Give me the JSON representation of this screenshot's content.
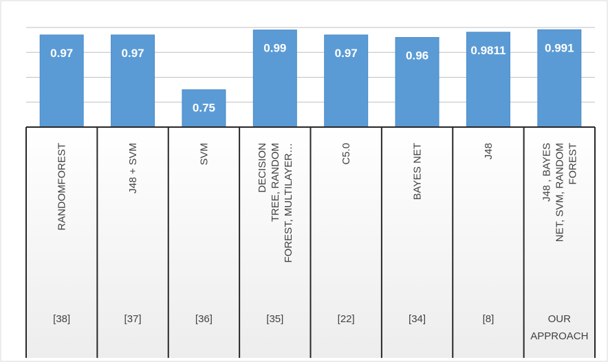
{
  "chart_data": {
    "type": "bar",
    "title": "",
    "xlabel": "",
    "ylabel": "",
    "ylim": [
      0.6,
      1.0
    ],
    "categories": [
      {
        "method": "RANDOMFOREST",
        "ref": "[38]"
      },
      {
        "method": "J48 + SVM",
        "ref": "[37]"
      },
      {
        "method": "SVM",
        "ref": "[36]"
      },
      {
        "method": "DECISION TREE, RANDOM FOREST, MULTILAYER…",
        "ref": "[35]"
      },
      {
        "method": "C5.0",
        "ref": "[22]"
      },
      {
        "method": "BAYES NET",
        "ref": "[34]"
      },
      {
        "method": "J48",
        "ref": "[8]"
      },
      {
        "method": "J48 , BAYES NET, SVM, RANDOM FOREST",
        "ref": "OUR APPROACH"
      }
    ],
    "method_label_lines": [
      [
        "RANDOMFOREST"
      ],
      [
        "J48 + SVM"
      ],
      [
        "SVM"
      ],
      [
        "DECISION",
        "TREE, RANDOM",
        "FOREST, MULTILAYER…"
      ],
      [
        "C5.0"
      ],
      [
        "BAYES NET"
      ],
      [
        "J48"
      ],
      [
        "J48 , BAYES",
        "NET, SVM, RANDOM",
        "FOREST"
      ]
    ],
    "ref_label_lines": [
      [
        "[38]"
      ],
      [
        "[37]"
      ],
      [
        "[36]"
      ],
      [
        "[35]"
      ],
      [
        "[22]"
      ],
      [
        "[34]"
      ],
      [
        "[8]"
      ],
      [
        "OUR",
        "APPROACH"
      ]
    ],
    "values": [
      0.97,
      0.97,
      0.75,
      0.99,
      0.97,
      0.96,
      0.9811,
      0.991
    ],
    "data_labels": [
      "0.97",
      "0.97",
      "0.75",
      "0.99",
      "0.97",
      "0.96",
      "0.9811",
      "0.991"
    ],
    "grid": true,
    "legend": "none",
    "colors": {
      "bar_fill": "#5b9bd5",
      "bar_stroke": "#4a8bc9",
      "data_label": "#ffffff",
      "axis_text": "#404040",
      "category_bg_top": "#ffffff",
      "category_bg_bottom": "#ededed",
      "grid": "#bfbfbf",
      "divider": "#262626",
      "frame": "#d9d9d9"
    }
  }
}
